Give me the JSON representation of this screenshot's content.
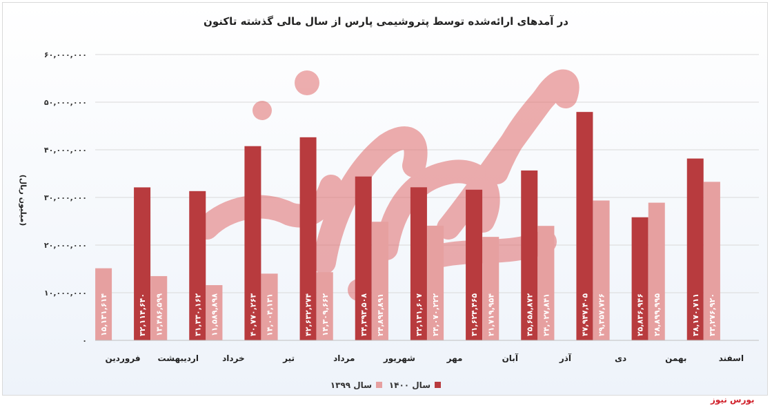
{
  "colors": {
    "series_1399": "#e6a0a0",
    "series_1400": "#b83b3e",
    "grid": "#d9d9d9",
    "watermark": "#e06b6b",
    "brand": "#d0202a"
  },
  "brand_text": "بورس نیوز",
  "chart_data": {
    "type": "bar",
    "title": "در آمدهای ارائه‌شده توسط پتروشیمی پارس از سال مالی گذشته تاکنون",
    "xlabel": "",
    "ylabel": "(میلیون ریال)",
    "ylim": [
      0,
      60000000
    ],
    "yticks": [
      0,
      10000000,
      20000000,
      30000000,
      40000000,
      50000000,
      60000000
    ],
    "ytick_labels": [
      "۰",
      "۱۰,۰۰۰,۰۰۰",
      "۲۰,۰۰۰,۰۰۰",
      "۳۰,۰۰۰,۰۰۰",
      "۴۰,۰۰۰,۰۰۰",
      "۵۰,۰۰۰,۰۰۰",
      "۶۰,۰۰۰,۰۰۰"
    ],
    "grid": true,
    "legend_position": "bottom",
    "categories": [
      "فروردین",
      "اردیبهشت",
      "خرداد",
      "تیر",
      "مرداد",
      "شهریور",
      "مهر",
      "آبان",
      "آذر",
      "دی",
      "بهمن",
      "اسفند"
    ],
    "series": [
      {
        "name": "سال ۱۳۹۹",
        "values": [
          15131614,
          13486599,
          11589898,
          14004131,
          14309662,
          24893891,
          24070222,
          21719954,
          24027841,
          29357726,
          28899995,
          33276920
        ],
        "labels": [
          "۱۵,۱۳۱,۶۱۴",
          "۱۳,۴۸۶,۵۹۹",
          "۱۱,۵۸۹,۸۹۸",
          "۱۴,۰۰۴,۱۳۱",
          "۱۴,۳۰۹,۶۶۲",
          "۲۴,۸۹۳,۸۹۱",
          "۲۴,۰۷۰,۲۲۲",
          "۲۱,۷۱۹,۹۵۴",
          "۲۴,۰۲۷,۸۴۱",
          "۲۹,۳۵۷,۷۲۶",
          "۲۸,۸۹۹,۹۹۵",
          "۳۳,۲۷۶,۹۲۰"
        ]
      },
      {
        "name": "سال ۱۴۰۰",
        "values": [
          32114640,
          31330162,
          40770263,
          42632274,
          34393508,
          32131607,
          31624465,
          35658872,
          47947405,
          25836946,
          38170711,
          null
        ],
        "labels": [
          "۳۲,۱۱۴,۶۴۰",
          "۳۱,۳۳۰,۱۶۲",
          "۴۰,۷۷۰,۲۶۳",
          "۴۲,۶۳۲,۲۷۴",
          "۳۴,۳۹۳,۵۰۸",
          "۳۲,۱۳۱,۶۰۷",
          "۳۱,۶۲۴,۴۶۵",
          "۳۵,۶۵۸,۸۷۲",
          "۴۷,۹۴۷,۴۰۵",
          "۲۵,۸۳۶,۹۴۶",
          "۳۸,۱۷۰,۷۱۱",
          ""
        ]
      }
    ]
  }
}
